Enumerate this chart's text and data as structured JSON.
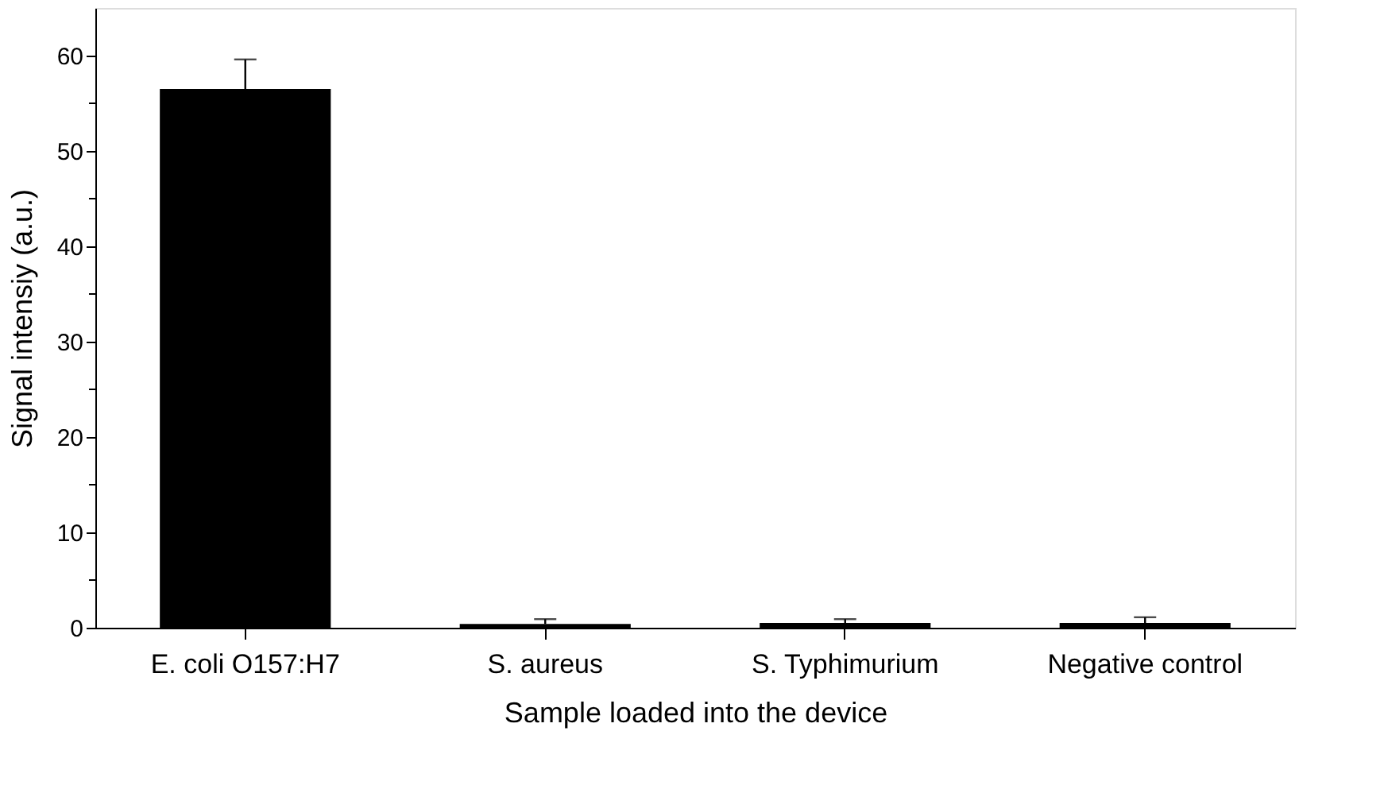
{
  "chart_data": {
    "type": "bar",
    "xlabel": "Sample loaded into the device",
    "ylabel": "Signal intensiy (a.u.)",
    "categories": [
      "E. coli O157:H7",
      "S. aureus",
      "S. Typhimurium",
      "Negative control"
    ],
    "values": [
      56.5,
      0.4,
      0.5,
      0.5
    ],
    "errors": [
      [
        56.5,
        59.6
      ],
      [
        0.4,
        0.9
      ],
      [
        0.5,
        0.9
      ],
      [
        0.5,
        1.1
      ]
    ],
    "color": "#000000",
    "ylim": [
      0,
      65
    ],
    "yticks": [
      0,
      {
        "value": 5,
        "label": null
      },
      10,
      {
        "value": 15,
        "label": null
      },
      20,
      {
        "value": 25,
        "label": null
      },
      30,
      {
        "value": 35,
        "label": null
      },
      40,
      {
        "value": 45,
        "label": null
      },
      50,
      {
        "value": 55,
        "label": null
      },
      60
    ],
    "grid": false
  }
}
